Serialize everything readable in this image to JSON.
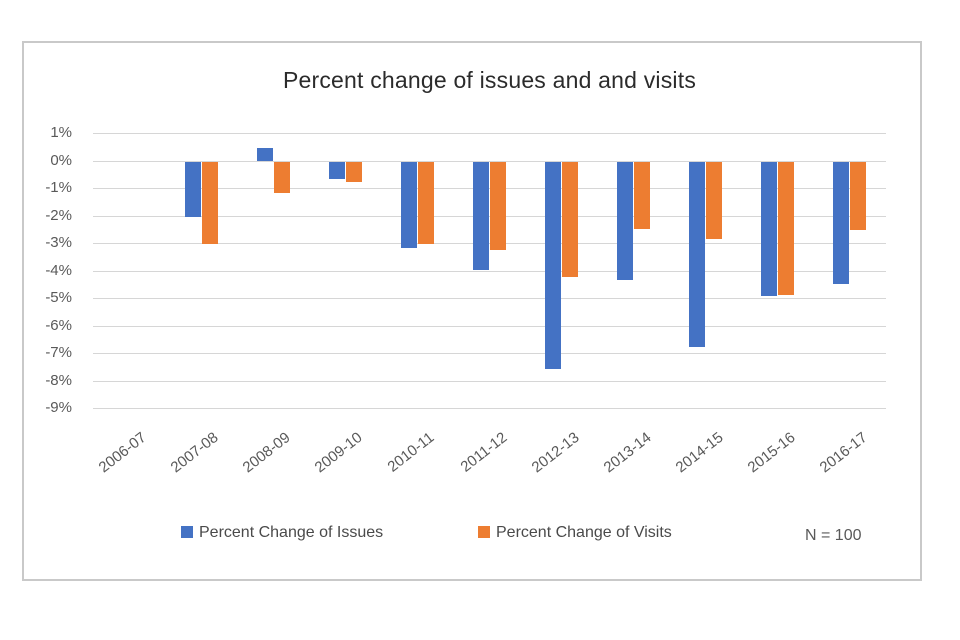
{
  "chart_data": {
    "type": "bar",
    "title": "Percent change of issues and and visits",
    "categories": [
      "2006-07",
      "2007-08",
      "2008-09",
      "2009-10",
      "2010-11",
      "2011-12",
      "2012-13",
      "2013-14",
      "2014-15",
      "2015-16",
      "2016-17"
    ],
    "series": [
      {
        "name": "Percent Change of Issues",
        "color": "#4472C4",
        "values": [
          null,
          -2.0,
          0.45,
          -0.65,
          -3.15,
          -3.95,
          -7.55,
          -4.3,
          -6.75,
          -4.9,
          -4.45
        ]
      },
      {
        "name": "Percent Change of Visits",
        "color": "#ED7D31",
        "values": [
          null,
          -3.0,
          -1.15,
          -0.75,
          -3.0,
          -3.2,
          -4.2,
          -2.45,
          -2.8,
          -4.85,
          -2.5
        ]
      }
    ],
    "y_ticks": [
      "1%",
      "0%",
      "-1%",
      "-2%",
      "-3%",
      "-4%",
      "-5%",
      "-6%",
      "-7%",
      "-8%",
      "-9%"
    ],
    "y_tick_values": [
      1,
      0,
      -1,
      -2,
      -3,
      -4,
      -5,
      -6,
      -7,
      -8,
      -9
    ],
    "ylim": [
      -9,
      1
    ],
    "unit": "percent",
    "grid": true,
    "legend_position": "bottom",
    "annotation": "N = 100"
  },
  "legend": {
    "issues_label": "Percent Change of Issues",
    "visits_label": "Percent Change of Visits",
    "note": "N = 100"
  },
  "colors": {
    "issues": "#4472C4",
    "visits": "#ED7D31",
    "gridline": "#d6d6d6",
    "axis_text": "#595959",
    "title_text": "#2b2b2b",
    "border": "#c9c9c9",
    "background": "#ffffff"
  }
}
